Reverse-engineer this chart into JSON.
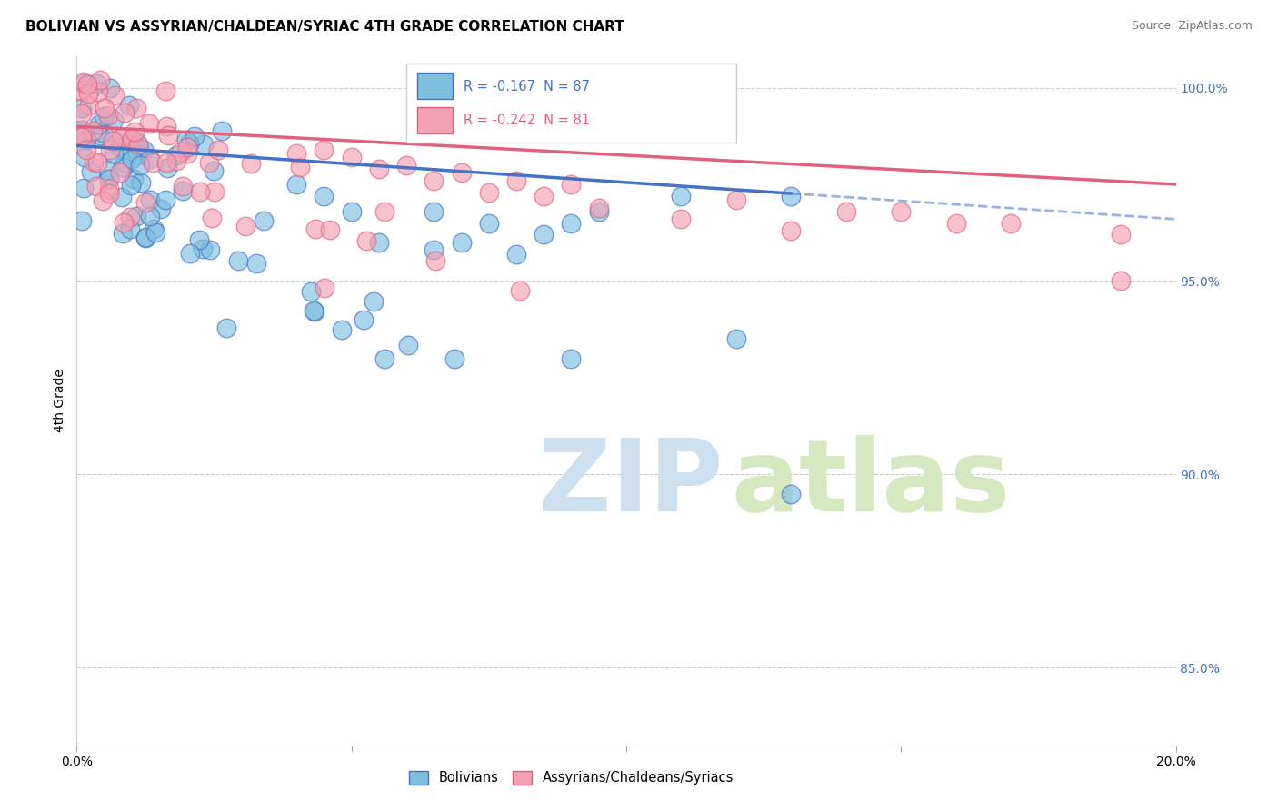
{
  "title": "BOLIVIAN VS ASSYRIAN/CHALDEAN/SYRIAC 4TH GRADE CORRELATION CHART",
  "source": "Source: ZipAtlas.com",
  "ylabel": "4th Grade",
  "xlim": [
    0.0,
    0.2
  ],
  "ylim": [
    0.83,
    1.008
  ],
  "ytick_values": [
    1.0,
    0.95,
    0.9,
    0.85
  ],
  "ytick_labels": [
    "100.0%",
    "95.0%",
    "90.0%",
    "85.0%"
  ],
  "legend_label1": "Bolivians",
  "legend_label2": "Assyrians/Chaldeans/Syriacs",
  "R1": -0.167,
  "N1": 87,
  "R2": -0.242,
  "N2": 81,
  "color_blue": "#7fbfdf",
  "color_pink": "#f4a0b5",
  "line_color_blue": "#4472c4",
  "line_color_pink": "#e06080",
  "background_color": "#ffffff",
  "grid_color": "#cccccc",
  "blue_line_solid_end": 0.13,
  "blue_line_dash_start": 0.13,
  "blue_line_y_at_0": 0.985,
  "blue_line_slope": -0.095,
  "pink_line_y_at_0": 0.99,
  "pink_line_slope": -0.075
}
